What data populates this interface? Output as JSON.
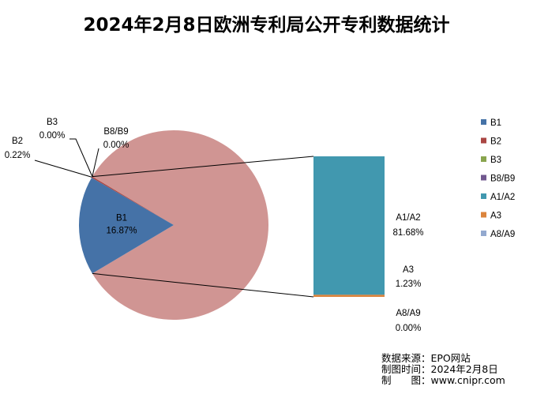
{
  "chart_data": {
    "type": "pie",
    "title": "2024年2月8日欧洲专利局公开专利数据统计",
    "slices": [
      {
        "name": "B1",
        "label": "B1",
        "percent_text": "16.87%",
        "value": 16.87,
        "color": "#4572a7"
      },
      {
        "name": "B2",
        "label": "B2",
        "percent_text": "0.22%",
        "value": 0.22,
        "color": "#aa4643"
      },
      {
        "name": "B3",
        "label": "B3",
        "percent_text": "0.00%",
        "value": 0.0,
        "color": "#89a54e"
      },
      {
        "name": "B8/B9",
        "label": "B8/B9",
        "percent_text": "0.00%",
        "value": 0.0,
        "color": "#71588f"
      },
      {
        "name": "A1/A2",
        "label": "A1/A2",
        "percent_text": "81.68%",
        "value": 81.68,
        "color": "#4198af"
      },
      {
        "name": "A3",
        "label": "A3",
        "percent_text": "1.23%",
        "value": 1.23,
        "color": "#db843d"
      },
      {
        "name": "A8/A9",
        "label": "A8/A9",
        "percent_text": "0.00%",
        "value": 0.0,
        "color": "#93a9cf"
      }
    ],
    "other_slice_color": "#d09593",
    "breakout": "A1/A2, A3, A8/A9 shown as stacked bar (pie of bar)",
    "legend": {
      "placement": "right",
      "entries": [
        "B1",
        "B2",
        "B3",
        "B8/B9",
        "A1/A2",
        "A3",
        "A8/A9"
      ]
    }
  },
  "source_note": {
    "line1": "数据来源：EPO网站",
    "line2": "制图时间：2024年2月8日",
    "line3": "制　　图：www.cnipr.com"
  }
}
